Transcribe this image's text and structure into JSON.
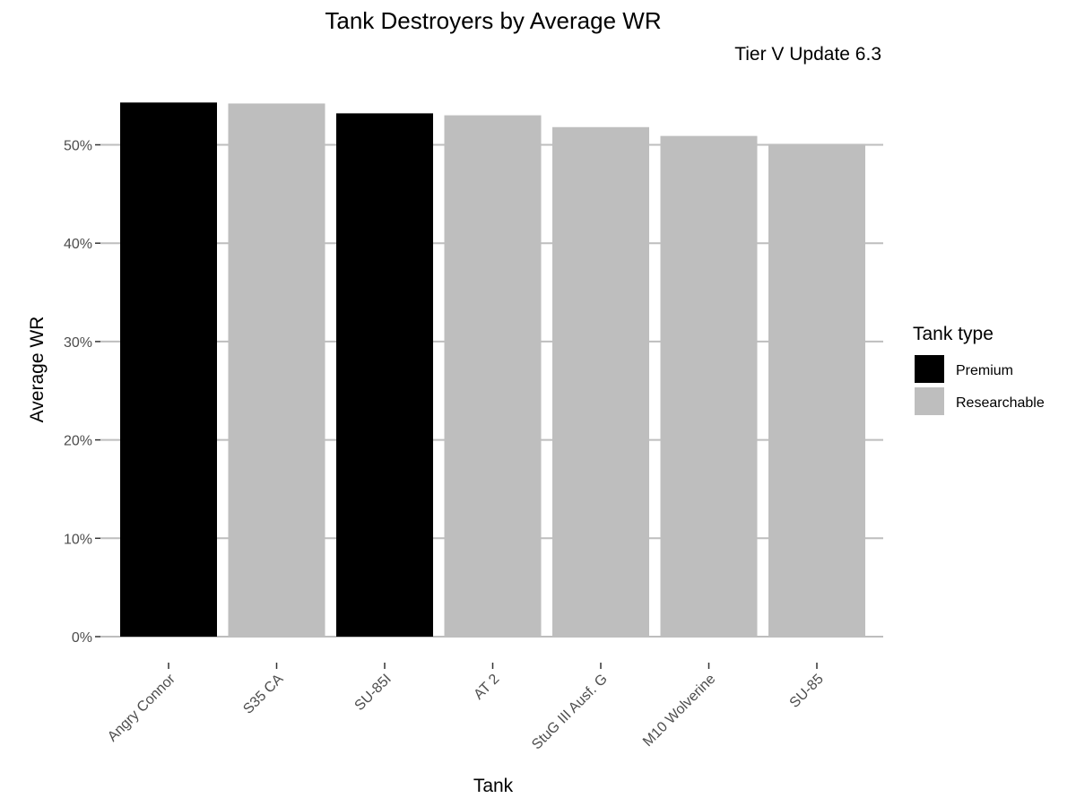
{
  "chart_data": {
    "type": "bar",
    "title": "Tank Destroyers by Average WR",
    "subtitle": "Tier V Update 6.3",
    "xlabel": "Tank",
    "ylabel": "Average WR",
    "categories": [
      "Angry Connor",
      "S35 CA",
      "SU-85I",
      "AT 2",
      "StuG III Ausf. G",
      "M10 Wolverine",
      "SU-85"
    ],
    "values": [
      54.3,
      54.2,
      53.2,
      53.0,
      51.8,
      50.9,
      50.1
    ],
    "tank_type": [
      "Premium",
      "Researchable",
      "Premium",
      "Researchable",
      "Researchable",
      "Researchable",
      "Researchable"
    ],
    "ylim": [
      0,
      54.3
    ],
    "yticks": [
      0,
      10,
      20,
      30,
      40,
      50
    ],
    "ytick_labels": [
      "0%",
      "10%",
      "20%",
      "30%",
      "40%",
      "50%"
    ],
    "grid": true,
    "legend": {
      "title": "Tank type",
      "placement": "right",
      "entries": [
        {
          "label": "Premium",
          "color": "#000000"
        },
        {
          "label": "Researchable",
          "color": "#bebebe"
        }
      ]
    }
  }
}
